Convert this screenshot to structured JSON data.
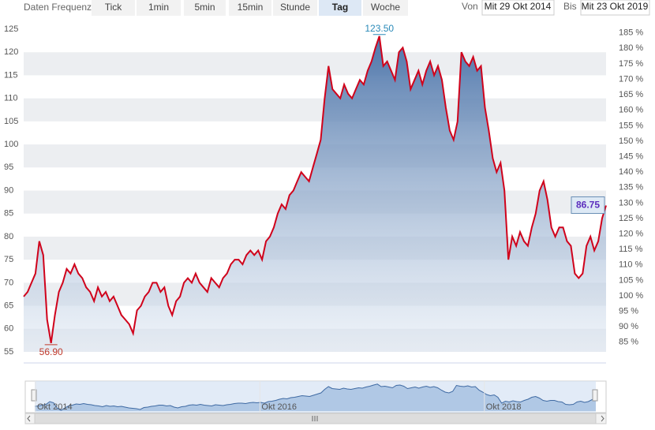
{
  "toolbar": {
    "label": "Daten Frequenz",
    "buttons": [
      {
        "label": "Tick",
        "active": false
      },
      {
        "label": "1min",
        "active": false
      },
      {
        "label": "5min",
        "active": false
      },
      {
        "label": "15min",
        "active": false
      },
      {
        "label": "Stunde",
        "active": false
      },
      {
        "label": "Tag",
        "active": true
      },
      {
        "label": "Woche",
        "active": false
      }
    ]
  },
  "range": {
    "from_label": "Von",
    "from": "Mit 29 Okt 2014",
    "to_label": "Bis",
    "to": "Mit 23 Okt 2019"
  },
  "chart_data": {
    "type": "area",
    "color": "#d0021b",
    "fill_color": "#4a72a8",
    "values": [
      67,
      68,
      70,
      72,
      79,
      76,
      62,
      56.9,
      63,
      68,
      70,
      73,
      72,
      74,
      72,
      71,
      69,
      68,
      66,
      69,
      67,
      68,
      66,
      67,
      65,
      63,
      62,
      61,
      59,
      64,
      65,
      67,
      68,
      70,
      70,
      68,
      69,
      65,
      63,
      66,
      67,
      70,
      71,
      70,
      72,
      70,
      69,
      68,
      71,
      70,
      69,
      71,
      72,
      74,
      75,
      75,
      74,
      76,
      77,
      76,
      77,
      75,
      79,
      80,
      82,
      85,
      87,
      86,
      89,
      90,
      92,
      94,
      93,
      92,
      95,
      98,
      101,
      110,
      117,
      112,
      111,
      110,
      113,
      111,
      110,
      112,
      114,
      113,
      116,
      118,
      121,
      123.5,
      117,
      118,
      116,
      114,
      120,
      121,
      118,
      112,
      114,
      116,
      113,
      116,
      118,
      115,
      117,
      114,
      108,
      103,
      101,
      105,
      120,
      118,
      117,
      119,
      116,
      117,
      108,
      103,
      97,
      94,
      96,
      90,
      75,
      80,
      78,
      81,
      79,
      78,
      82,
      85,
      90,
      92,
      88,
      82,
      80,
      82,
      82,
      79,
      78,
      72,
      71,
      72,
      78,
      80,
      77,
      79,
      84,
      86.75
    ],
    "ylim": [
      55,
      125
    ],
    "yticks": [
      55,
      60,
      65,
      70,
      75,
      80,
      85,
      90,
      95,
      100,
      105,
      110,
      115,
      120,
      125
    ],
    "y2lim": [
      81.9,
      186.2
    ],
    "y2ticks": [
      {
        "value": 85,
        "label": "85 %"
      },
      {
        "value": 90,
        "label": "90 %"
      },
      {
        "value": 95,
        "label": "95 %"
      },
      {
        "value": 100,
        "label": "100 %"
      },
      {
        "value": 105,
        "label": "105 %"
      },
      {
        "value": 110,
        "label": "110 %"
      },
      {
        "value": 115,
        "label": "115 %"
      },
      {
        "value": 120,
        "label": "120 %"
      },
      {
        "value": 125,
        "label": "125 %"
      },
      {
        "value": 130,
        "label": "130 %"
      },
      {
        "value": 135,
        "label": "135 %"
      },
      {
        "value": 140,
        "label": "140 %"
      },
      {
        "value": 145,
        "label": "145 %"
      },
      {
        "value": 150,
        "label": "150 %"
      },
      {
        "value": 155,
        "label": "155 %"
      },
      {
        "value": 160,
        "label": "160 %"
      },
      {
        "value": 165,
        "label": "165 %"
      },
      {
        "value": 170,
        "label": "170 %"
      },
      {
        "value": 175,
        "label": "175 %"
      },
      {
        "value": 180,
        "label": "180 %"
      },
      {
        "value": 185,
        "label": "185 %"
      }
    ],
    "grid": true,
    "max_label": {
      "value": 123.5,
      "label": "123.50"
    },
    "min_label": {
      "value": 56.9,
      "label": "56.90"
    },
    "last_label": {
      "value": 86.75,
      "label": "86.75"
    },
    "navigator": {
      "labels": [
        "Okt 2014",
        "Okt 2016",
        "Okt 2018"
      ]
    }
  }
}
